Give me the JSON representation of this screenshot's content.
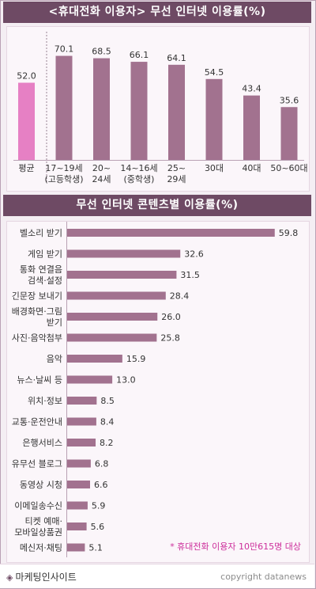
{
  "chart_data": [
    {
      "type": "bar",
      "title": "<휴대전화 이용자> 무선 인터넷 이용률(%)",
      "categories": [
        [
          "평균"
        ],
        [
          "17~19세",
          "(고등학생)"
        ],
        [
          "20~",
          "24세"
        ],
        [
          "14~16세",
          "(중학생)"
        ],
        [
          "25~",
          "29세"
        ],
        [
          "30대"
        ],
        [
          "40대"
        ],
        [
          "50~60대"
        ]
      ],
      "values": [
        52.0,
        70.1,
        68.5,
        66.1,
        64.1,
        54.5,
        43.4,
        35.6
      ],
      "value_labels": [
        "52.0",
        "70.1",
        "68.5",
        "66.1",
        "64.1",
        "54.5",
        "43.4",
        "35.6"
      ],
      "ylim": [
        0,
        80
      ],
      "highlight_index": 0,
      "colors": {
        "bar": "#a2728f",
        "highlight": "#e680c4"
      }
    },
    {
      "type": "bar",
      "orientation": "horizontal",
      "title": "무선 인터넷 콘텐츠별 이용률(%)",
      "categories": [
        [
          "벨소리 받기"
        ],
        [
          "게임 받기"
        ],
        [
          "통화 연결음",
          "검색·설정"
        ],
        [
          "긴문장 보내기"
        ],
        [
          "배경화면·그림",
          "받기"
        ],
        [
          "사진·음악첨부"
        ],
        [
          "음악"
        ],
        [
          "뉴스·날씨 등"
        ],
        [
          "위치·정보"
        ],
        [
          "교통·운전안내"
        ],
        [
          "은행서비스"
        ],
        [
          "유무선 블로그"
        ],
        [
          "동영상 시청"
        ],
        [
          "이메일송수신"
        ],
        [
          "티켓 예매·",
          "모바일상품권"
        ],
        [
          "메신저·채팅"
        ]
      ],
      "values": [
        59.8,
        32.6,
        31.5,
        28.4,
        26.0,
        25.8,
        15.9,
        13.0,
        8.5,
        8.4,
        8.2,
        6.8,
        6.6,
        5.9,
        5.6,
        5.1
      ],
      "value_labels": [
        "59.8",
        "32.6",
        "31.5",
        "28.4",
        "26.0",
        "25.8",
        "15.9",
        "13.0",
        "8.5",
        "8.4",
        "8.2",
        "6.8",
        "6.6",
        "5.9",
        "5.6",
        "5.1"
      ],
      "xlim": [
        0,
        66
      ],
      "note": "* 휴대전화 이용자 10만615명 대상",
      "colors": {
        "bar": "#a2728f",
        "note": "#cc2e9b"
      }
    }
  ],
  "footer": {
    "brand": "마케팅인사이트",
    "copyright": "copyright datanews"
  },
  "colors": {
    "title_bg": "#6e4a64",
    "panel_bg": "#fbf6fa"
  }
}
